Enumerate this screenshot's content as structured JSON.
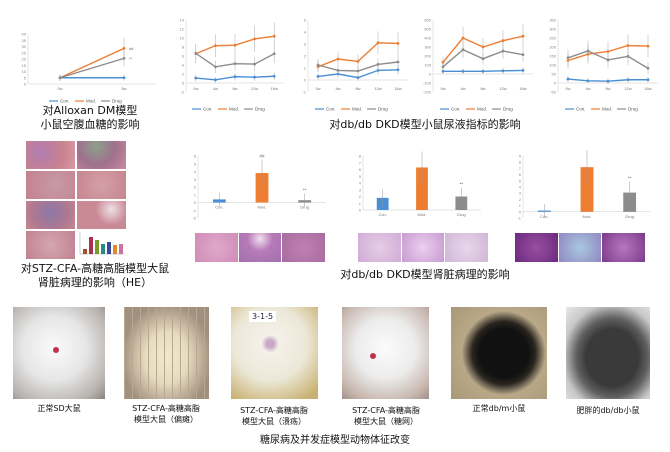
{
  "colors": {
    "con": "#4a8fd4",
    "mod": "#ed7d31",
    "drug": "#8c8c8c"
  },
  "legend": [
    "Con.",
    "Mod.",
    "Drug"
  ],
  "captions": {
    "alloxan": [
      "对Alloxan DM模型",
      "小鼠空腹血糖的影响"
    ],
    "urine": "对db/db DKD模型小鼠尿液指标的影响",
    "he": [
      "对STZ-CFA-高糖高脂模型大鼠",
      "肾脏病理的影响（HE）"
    ],
    "kidney": "对db/db DKD模型肾脏病理的影响",
    "animals": "糖尿病及并发症模型动物体征改变"
  },
  "photos": [
    {
      "label": [
        "正常SD大鼠"
      ]
    },
    {
      "label": [
        "STZ-CFA-高糖高脂",
        "模型大鼠（偏瘫）"
      ]
    },
    {
      "label": [
        "STZ-CFA-高糖高脂",
        "模型大鼠（溃疡）"
      ],
      "tag": "3-1-5"
    },
    {
      "label": [
        "STZ-CFA-高糖高脂",
        "模型大鼠（糖网）"
      ]
    },
    {
      "label": [
        "正常db/m小鼠"
      ]
    },
    {
      "label": [
        "肥胖的db/db小鼠"
      ]
    }
  ],
  "chart_data": [
    {
      "type": "line",
      "id": "alloxan",
      "categories": [
        "0w",
        "5w"
      ],
      "ylim": [
        0,
        40
      ],
      "yticks": [
        0,
        5,
        10,
        15,
        20,
        25,
        30,
        35,
        40
      ],
      "series": [
        {
          "name": "Con.",
          "values": [
            5,
            5
          ]
        },
        {
          "name": "Mod.",
          "values": [
            5,
            28.5
          ],
          "sig": "##"
        },
        {
          "name": "Drug",
          "values": [
            5,
            20.5
          ],
          "sig": "**"
        }
      ]
    },
    {
      "type": "line",
      "id": "urine1",
      "categories": [
        "0w",
        "4w",
        "8w",
        "12w",
        "16w"
      ],
      "ylim": [
        -2,
        14
      ],
      "yticks": [
        -2,
        0,
        2,
        4,
        6,
        8,
        10,
        12,
        14
      ],
      "series": [
        {
          "name": "Con.",
          "values": [
            1.1,
            0.7,
            1.4,
            1.3,
            1.5
          ]
        },
        {
          "name": "Mod.",
          "values": [
            6.5,
            8.3,
            8.4,
            9.8,
            10.4
          ]
        },
        {
          "name": "Drug",
          "values": [
            6.6,
            3.6,
            4.3,
            4.2,
            6.5
          ]
        }
      ]
    },
    {
      "type": "line",
      "id": "urine2",
      "categories": [
        "0w",
        "4w",
        "8w",
        "12w",
        "16w"
      ],
      "ylim": [
        -1,
        5
      ],
      "yticks": [
        -1,
        0,
        1,
        2,
        3,
        4,
        5
      ],
      "series": [
        {
          "name": "Con.",
          "values": [
            0.3,
            0.5,
            0.2,
            0.8,
            0.85
          ]
        },
        {
          "name": "Mod.",
          "values": [
            1.1,
            1.75,
            1.55,
            3.1,
            3.05
          ]
        },
        {
          "name": "Drug",
          "values": [
            1.25,
            0.8,
            0.75,
            1.3,
            1.5
          ]
        }
      ]
    },
    {
      "type": "line",
      "id": "urine3",
      "categories": [
        "0w",
        "4w",
        "8w",
        "12w",
        "16w"
      ],
      "ylim": [
        -200,
        600
      ],
      "yticks": [
        -200,
        -100,
        0,
        100,
        200,
        300,
        400,
        500,
        600
      ],
      "series": [
        {
          "name": "Con.",
          "values": [
            30,
            30,
            30,
            35,
            40
          ]
        },
        {
          "name": "Mod.",
          "values": [
            130,
            400,
            300,
            370,
            420
          ]
        },
        {
          "name": "Drug",
          "values": [
            80,
            270,
            170,
            255,
            215
          ]
        }
      ]
    },
    {
      "type": "line",
      "id": "urine4",
      "categories": [
        "0w",
        "4w",
        "8w",
        "12w",
        "16w"
      ],
      "ylim": [
        -50,
        350
      ],
      "yticks": [
        -50,
        0,
        50,
        100,
        150,
        200,
        250,
        300,
        350
      ],
      "series": [
        {
          "name": "Con.",
          "values": [
            22,
            12,
            10,
            18,
            18
          ]
        },
        {
          "name": "Mod.",
          "values": [
            125,
            160,
            175,
            208,
            205
          ]
        },
        {
          "name": "Drug",
          "values": [
            140,
            178,
            128,
            148,
            82
          ]
        }
      ]
    },
    {
      "type": "bar",
      "id": "bar1",
      "categories": [
        "Con.",
        "Mod.",
        "Drug"
      ],
      "values": [
        0.4,
        3.8,
        0.3
      ],
      "sig": [
        "",
        "##",
        "**"
      ],
      "ylim": [
        -2,
        6
      ],
      "yticks": [
        -2,
        -1,
        0,
        1,
        2,
        3,
        4,
        5,
        6
      ]
    },
    {
      "type": "bar",
      "id": "bar2",
      "categories": [
        "Con.",
        "Mod.",
        "Drug"
      ],
      "values": [
        1.8,
        6.3,
        2.0
      ],
      "sig": [
        "",
        "##",
        "**"
      ],
      "ylim": [
        0,
        8
      ],
      "yticks": [
        0,
        1,
        2,
        3,
        4,
        5,
        6,
        7,
        8
      ]
    },
    {
      "type": "bar",
      "id": "bar3",
      "categories": [
        "Con.",
        "Mod.",
        "Drug"
      ],
      "values": [
        0.2,
        7.2,
        3.1
      ],
      "sig": [
        "",
        "##",
        "**"
      ],
      "ylim": [
        -1,
        9
      ],
      "yticks": [
        -1,
        0,
        1,
        2,
        3,
        4,
        5,
        6,
        7,
        8,
        9
      ]
    }
  ]
}
